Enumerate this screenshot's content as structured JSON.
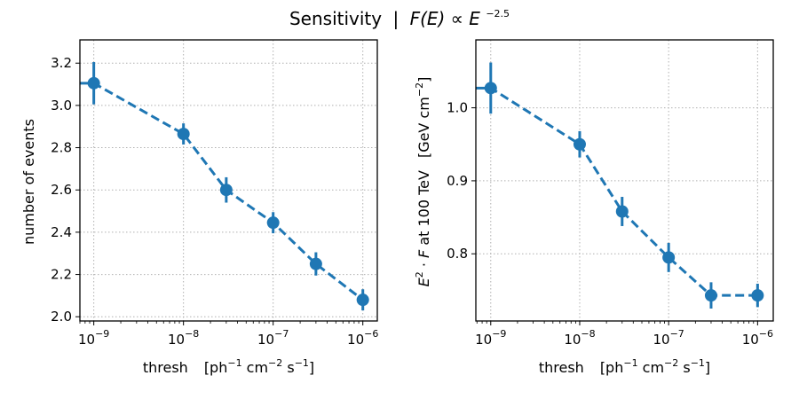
{
  "figure": {
    "title_prefix": "Sensitivity",
    "title_sep": "|",
    "title_formula": "F(E) ∝ E",
    "title_exponent": "−2.5"
  },
  "chart_data": [
    {
      "type": "line",
      "xscale": "log",
      "xlim": [
        7e-10,
        1.45e-06
      ],
      "ylim": [
        1.98,
        3.31
      ],
      "x_ticks": [
        1e-09,
        1e-08,
        1e-07,
        1e-06
      ],
      "x_tick_labels": [
        {
          "base": "10",
          "exp": "−9"
        },
        {
          "base": "10",
          "exp": "−8"
        },
        {
          "base": "10",
          "exp": "−7"
        },
        {
          "base": "10",
          "exp": "−6"
        }
      ],
      "y_ticks": [
        2.0,
        2.2,
        2.4,
        2.6,
        2.8,
        3.0,
        3.2
      ],
      "y_tick_labels": [
        "2.0",
        "2.2",
        "2.4",
        "2.6",
        "2.8",
        "3.0",
        "3.2"
      ],
      "xlabel": {
        "text": "thresh",
        "unit_open": "[ph",
        "e1": "−1",
        "cm": " cm",
        "e2": "−2",
        "s": " s",
        "e3": "−1",
        "unit_close": "]"
      },
      "ylabel": "number of events",
      "grid": true,
      "color": "#1f77b4",
      "line_style": "dashed",
      "x": [
        7e-10,
        1e-09,
        1e-08,
        3e-08,
        1e-07,
        3e-07,
        1e-06
      ],
      "y": [
        3.105,
        3.105,
        2.865,
        2.6,
        2.445,
        2.25,
        2.08
      ],
      "points": [
        {
          "x": 1e-09,
          "y": 3.105,
          "err": 0.1
        },
        {
          "x": 1e-08,
          "y": 2.865,
          "err": 0.05
        },
        {
          "x": 3e-08,
          "y": 2.6,
          "err": 0.06
        },
        {
          "x": 1e-07,
          "y": 2.445,
          "err": 0.05
        },
        {
          "x": 3e-07,
          "y": 2.25,
          "err": 0.055
        },
        {
          "x": 1e-06,
          "y": 2.08,
          "err": 0.05
        }
      ]
    },
    {
      "type": "line",
      "xscale": "log",
      "xlim": [
        6.8e-10,
        1.5e-06
      ],
      "ylim": [
        0.708,
        1.093
      ],
      "x_ticks": [
        1e-09,
        1e-08,
        1e-07,
        1e-06
      ],
      "x_tick_labels": [
        {
          "base": "10",
          "exp": "−9"
        },
        {
          "base": "10",
          "exp": "−8"
        },
        {
          "base": "10",
          "exp": "−7"
        },
        {
          "base": "10",
          "exp": "−6"
        }
      ],
      "y_ticks": [
        0.8,
        0.9,
        1.0
      ],
      "y_tick_labels": [
        "0.8",
        "0.9",
        "1.0"
      ],
      "xlabel": {
        "text": "thresh",
        "unit_open": "[ph",
        "e1": "−1",
        "cm": " cm",
        "e2": "−2",
        "s": " s",
        "e3": "−1",
        "unit_close": "]"
      },
      "ylabel": {
        "E": "E",
        "e2": "2",
        "mid": " · ",
        "F": "F",
        "rest": " at 100 TeV",
        "unit_open": "[GeV cm",
        "unit_exp": "−2",
        "unit_close": "]"
      },
      "grid": true,
      "color": "#1f77b4",
      "line_style": "dashed",
      "x": [
        6.8e-10,
        1e-09,
        1e-08,
        3e-08,
        1e-07,
        3e-07,
        1e-06
      ],
      "y": [
        1.027,
        1.027,
        0.95,
        0.858,
        0.795,
        0.743,
        0.743
      ],
      "points": [
        {
          "x": 1e-09,
          "y": 1.027,
          "err": 0.035
        },
        {
          "x": 1e-08,
          "y": 0.95,
          "err": 0.018
        },
        {
          "x": 3e-08,
          "y": 0.858,
          "err": 0.02
        },
        {
          "x": 1e-07,
          "y": 0.795,
          "err": 0.02
        },
        {
          "x": 3e-07,
          "y": 0.743,
          "err": 0.018
        },
        {
          "x": 1e-06,
          "y": 0.743,
          "err": 0.016
        }
      ]
    }
  ]
}
